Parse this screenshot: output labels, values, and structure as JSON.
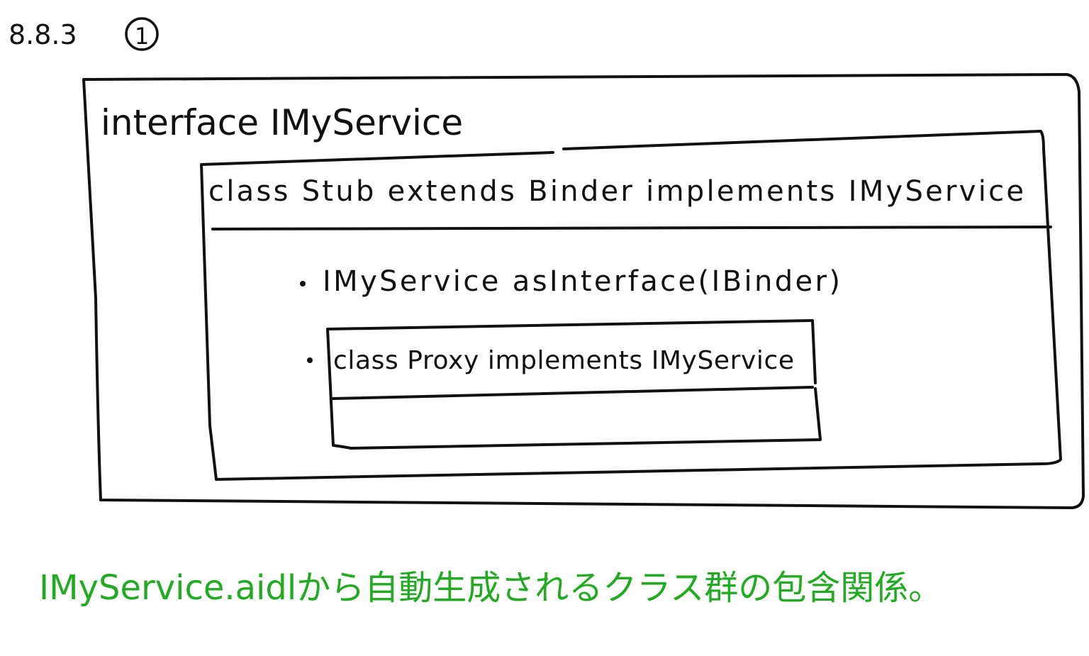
{
  "section": "8.8.3",
  "badge": "1",
  "interface": {
    "title": "interface IMyService",
    "stub": {
      "title": "class Stub extends Binder implements IMyService",
      "members": [
        "IMyService asInterface(IBinder)",
        "class Proxy implements IMyService"
      ]
    }
  },
  "caption": "IMyService.aidlから自動生成されるクラス群の包含関係。"
}
